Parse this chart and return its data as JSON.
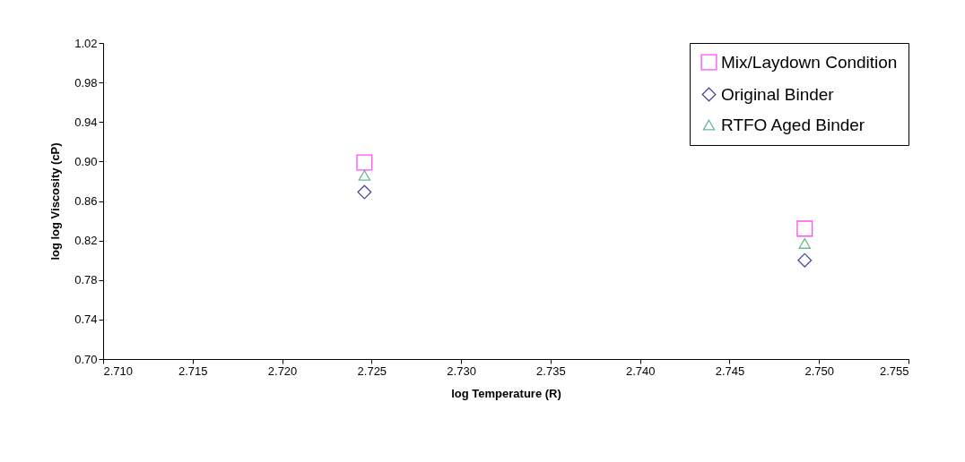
{
  "chart_data": {
    "type": "scatter",
    "xlabel": "log Temperature (R)",
    "ylabel": "log log Viscosity (cP)",
    "x": [
      2.7246,
      2.7492
    ],
    "series": [
      {
        "name": "Mix/Laydown Condition",
        "color": "#ff00ff",
        "marker": "square",
        "values": [
          0.899,
          0.832
        ]
      },
      {
        "name": "Original Binder",
        "color": "#000080",
        "marker": "diamond",
        "values": [
          0.869,
          0.8
        ]
      },
      {
        "name": "RTFO Aged Binder",
        "color": "#339966",
        "marker": "triangle",
        "values": [
          0.886,
          0.817
        ]
      }
    ],
    "xlim": [
      2.71,
      2.755
    ],
    "xticks": [
      {
        "value": 2.71,
        "label": "2.710"
      },
      {
        "value": 2.715,
        "label": "2.715"
      },
      {
        "value": 2.72,
        "label": "2.720"
      },
      {
        "value": 2.725,
        "label": "2.725"
      },
      {
        "value": 2.73,
        "label": "2.730"
      },
      {
        "value": 2.735,
        "label": "2.735"
      },
      {
        "value": 2.74,
        "label": "2.740"
      },
      {
        "value": 2.745,
        "label": "2.745"
      },
      {
        "value": 2.75,
        "label": "2.750"
      },
      {
        "value": 2.755,
        "label": "2.755"
      }
    ],
    "ylim": [
      0.7,
      1.02
    ],
    "yticks": [
      {
        "value": 0.7,
        "label": "0.70"
      },
      {
        "value": 0.74,
        "label": "0.74"
      },
      {
        "value": 0.78,
        "label": "0.78"
      },
      {
        "value": 0.82,
        "label": "0.82"
      },
      {
        "value": 0.86,
        "label": "0.86"
      },
      {
        "value": 0.9,
        "label": "0.90"
      },
      {
        "value": 0.94,
        "label": "0.94"
      },
      {
        "value": 0.98,
        "label": "0.98"
      },
      {
        "value": 1.02,
        "label": "1.02"
      }
    ],
    "grid": false,
    "legend": "top right"
  }
}
